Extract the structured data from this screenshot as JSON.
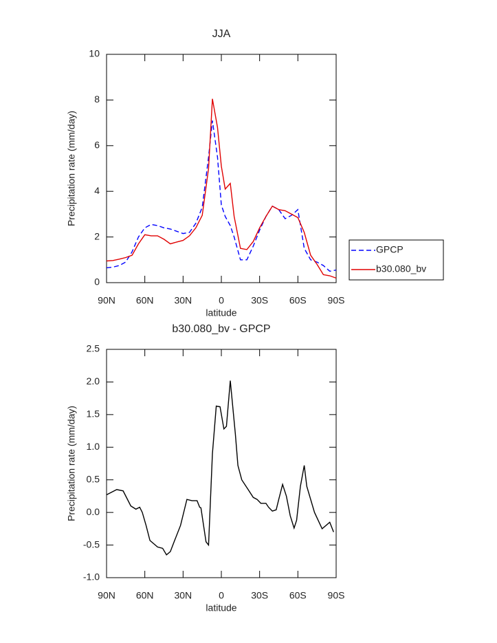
{
  "chart_data": [
    {
      "type": "line",
      "title": "JJA",
      "xlabel": "latitude",
      "ylabel": "Precipitation rate (mm/day)",
      "x": [
        90,
        85,
        80,
        75,
        70,
        65,
        60,
        55,
        50,
        45,
        40,
        35,
        30,
        25,
        20,
        15,
        10,
        7,
        3,
        0,
        -3,
        -7,
        -10,
        -15,
        -20,
        -25,
        -30,
        -35,
        -40,
        -45,
        -50,
        -55,
        -60,
        -65,
        -70,
        -75,
        -80,
        -85,
        -90
      ],
      "series": [
        {
          "name": "GPCP",
          "color": "#0000ff",
          "dash": true,
          "values": [
            0.65,
            0.68,
            0.75,
            0.9,
            1.35,
            2.0,
            2.4,
            2.55,
            2.5,
            2.4,
            2.35,
            2.25,
            2.15,
            2.2,
            2.6,
            3.3,
            5.5,
            7.1,
            5.5,
            3.4,
            2.9,
            2.5,
            2.0,
            1.0,
            1.0,
            1.6,
            2.3,
            2.9,
            3.35,
            3.2,
            2.8,
            2.95,
            3.2,
            1.5,
            1.0,
            0.9,
            0.75,
            0.5,
            0.55
          ]
        },
        {
          "name": "b30.080_bv",
          "color": "#e00000",
          "dash": false,
          "values": [
            0.95,
            0.97,
            1.03,
            1.1,
            1.2,
            1.7,
            2.1,
            2.05,
            2.05,
            1.9,
            1.7,
            1.78,
            1.85,
            2.05,
            2.4,
            2.95,
            5.0,
            8.05,
            6.8,
            5.1,
            4.1,
            4.35,
            2.9,
            1.5,
            1.45,
            1.8,
            2.4,
            2.9,
            3.35,
            3.2,
            3.15,
            3.0,
            2.85,
            2.2,
            1.2,
            0.8,
            0.35,
            0.3,
            0.2
          ]
        }
      ],
      "xlim": [
        90,
        -90
      ],
      "xticks": [
        {
          "value": 90,
          "label": "90N"
        },
        {
          "value": 60,
          "label": "60N"
        },
        {
          "value": 30,
          "label": "30N"
        },
        0,
        {
          "value": -30,
          "label": "30S"
        },
        {
          "value": -60,
          "label": "60S"
        },
        {
          "value": -90,
          "label": "90S"
        }
      ],
      "ylim": [
        0,
        10
      ],
      "yticks": [
        0,
        2,
        4,
        6,
        8,
        10
      ],
      "legend": "outside-right"
    },
    {
      "type": "line",
      "title": "b30.080_bv - GPCP",
      "xlabel": "latitude",
      "ylabel": "Precipitation rate (mm/day)",
      "x": [
        90,
        82,
        77,
        71,
        67,
        64,
        62,
        59,
        56,
        50,
        46,
        43,
        40,
        37,
        32,
        27,
        23,
        19,
        17,
        16,
        12,
        10,
        7,
        4,
        1,
        -2,
        -4,
        -7,
        -11,
        -13,
        -16,
        -21,
        -25,
        -28,
        -31,
        -35,
        -37,
        -40,
        -43,
        -45,
        -48,
        -51,
        -54,
        -57,
        -59,
        -62,
        -65,
        -67,
        -73,
        -79,
        -85,
        -88
      ],
      "values": [
        0.27,
        0.35,
        0.33,
        0.1,
        0.05,
        0.08,
        0.0,
        -0.2,
        -0.43,
        -0.53,
        -0.55,
        -0.65,
        -0.6,
        -0.45,
        -0.2,
        0.2,
        0.18,
        0.18,
        0.08,
        0.07,
        -0.45,
        -0.5,
        0.9,
        1.63,
        1.62,
        1.28,
        1.32,
        2.02,
        1.2,
        0.72,
        0.5,
        0.35,
        0.23,
        0.2,
        0.14,
        0.14,
        0.08,
        0.02,
        0.04,
        0.2,
        0.43,
        0.25,
        -0.05,
        -0.24,
        -0.12,
        0.4,
        0.72,
        0.4,
        0.0,
        -0.25,
        -0.15,
        -0.3
      ],
      "color": "#000000",
      "xlim": [
        90,
        -90
      ],
      "xticks": [
        {
          "value": 90,
          "label": "90N"
        },
        {
          "value": 60,
          "label": "60N"
        },
        {
          "value": 30,
          "label": "30N"
        },
        0,
        {
          "value": -30,
          "label": "30S"
        },
        {
          "value": -60,
          "label": "60S"
        },
        {
          "value": -90,
          "label": "90S"
        }
      ],
      "ylim": [
        -1,
        2.5
      ],
      "yticks": [
        {
          "value": -1,
          "label": "-1.0"
        },
        {
          "value": -0.5,
          "label": "-0.5"
        },
        {
          "value": 0,
          "label": "0.0"
        },
        0.5,
        {
          "value": 1,
          "label": "1.0"
        },
        1.5,
        {
          "value": 2,
          "label": "2.0"
        },
        2.5
      ]
    }
  ]
}
